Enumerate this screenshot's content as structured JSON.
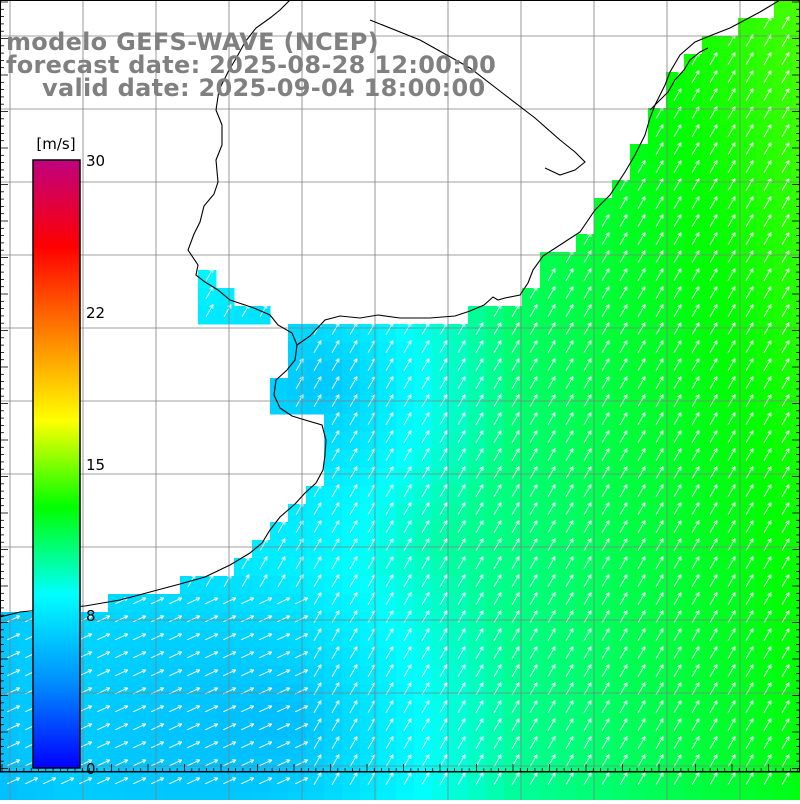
{
  "title": {
    "line1": "modelo GEFS-WAVE (NCEP)",
    "line2": "forecast date: 2025-08-28 12:00:00",
    "line3": "valid date: 2025-09-04 18:00:00"
  },
  "legend": {
    "unit_label": "[m/s]",
    "ticks": [
      "30",
      "22",
      "15",
      "8",
      "0"
    ],
    "tick_values": [
      30,
      22,
      15,
      8,
      0
    ],
    "range": [
      0,
      30
    ],
    "colors": [
      "#0000ff",
      "#0090ff",
      "#00ffff",
      "#00ff00",
      "#ffff00",
      "#ff8000",
      "#ff0000",
      "#c00080"
    ]
  },
  "colors": {
    "land": "#ffffff",
    "grid": "#808080",
    "coast": "#000000",
    "arrow": "#ffffff",
    "title_text": "#808080"
  },
  "variable": "wind speed and direction",
  "arrow_direction": "blowing toward north-east"
}
